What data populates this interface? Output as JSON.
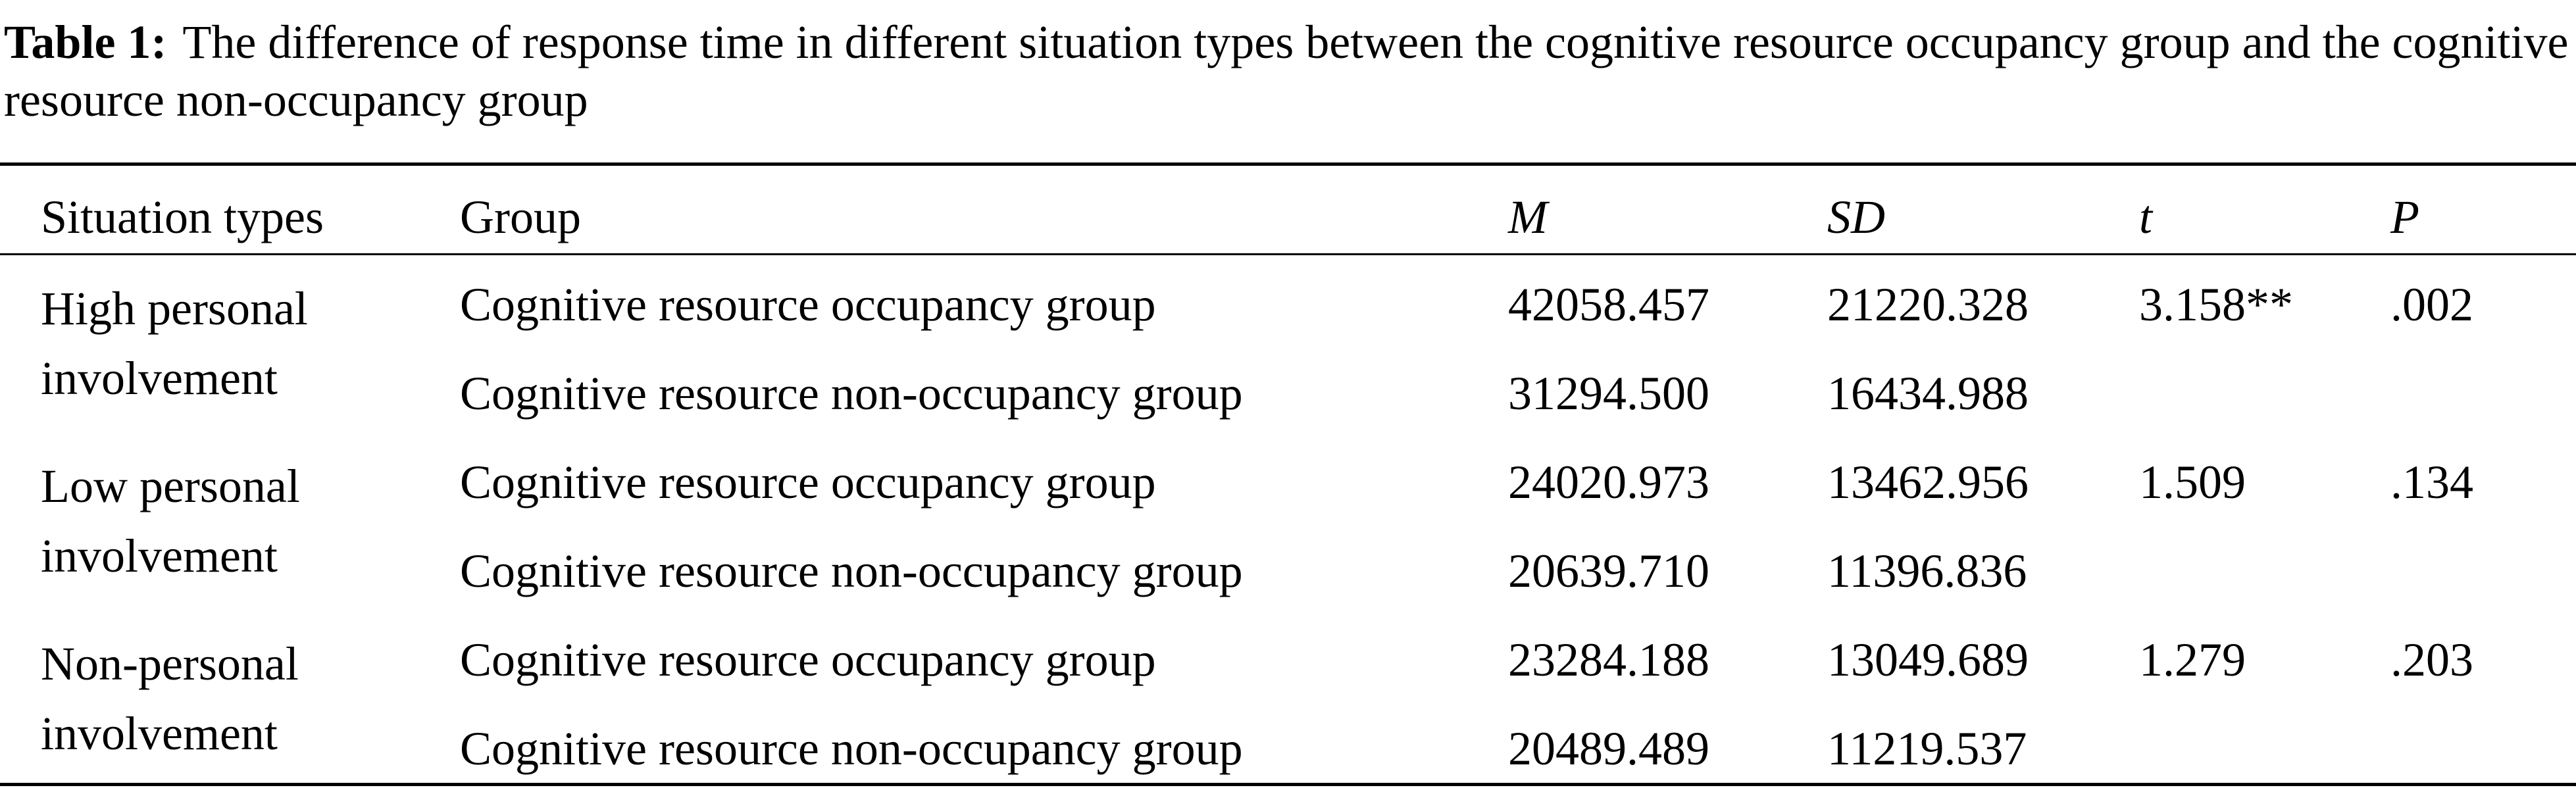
{
  "caption": {
    "label": "Table 1:",
    "text": "The difference of response time in different situation types between the cognitive resource occupancy group and the cognitive resource non-occupancy group"
  },
  "table": {
    "headers": [
      "Situation types",
      "Group",
      "M",
      "SD",
      "t",
      "P"
    ],
    "groups": [
      {
        "situation": "High personal involvement",
        "rows": [
          [
            "Cognitive resource occupancy group",
            "42058.457",
            "21220.328",
            "3.158**",
            ".002"
          ],
          [
            "Cognitive resource non-occupancy group",
            "31294.500",
            "16434.988"
          ]
        ]
      },
      {
        "situation": "Low personal involvement",
        "rows": [
          [
            "Cognitive resource occupancy group",
            "24020.973",
            "13462.956",
            "1.509",
            ".134"
          ],
          [
            "Cognitive resource non-occupancy group",
            "20639.710",
            "11396.836"
          ]
        ]
      },
      {
        "situation": "Non-personal involvement",
        "rows": [
          [
            "Cognitive resource occupancy group",
            "23284.188",
            "13049.689",
            "1.279",
            ".203"
          ],
          [
            "Cognitive resource non-occupancy group",
            "20489.489",
            "11219.537"
          ]
        ]
      }
    ]
  }
}
